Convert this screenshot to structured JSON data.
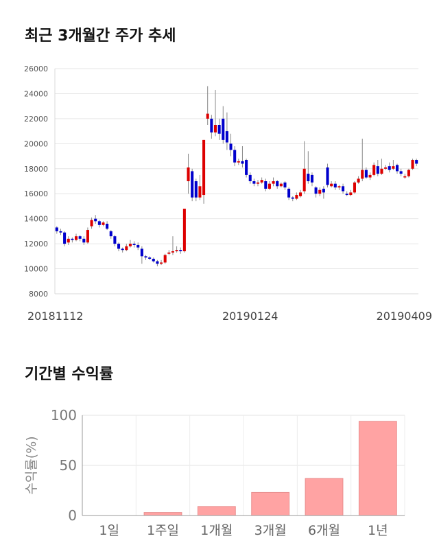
{
  "sections": {
    "price_title": "최근 3개월간 주가 추세",
    "returns_title": "기간별 수익률"
  },
  "chart_data": [
    {
      "type": "candlestick",
      "title": "최근 3개월간 주가 추세",
      "y_ticks": [
        8000,
        10000,
        12000,
        14000,
        16000,
        18000,
        20000,
        22000,
        24000,
        26000
      ],
      "ylim": [
        8000,
        26000
      ],
      "x_tick_labels": [
        "20181112",
        "20190124",
        "20190409"
      ],
      "x_tick_indices": [
        0,
        50,
        100
      ],
      "grid": true,
      "up_color": "#dd0000",
      "down_color": "#0000cc",
      "candles": [
        [
          13300,
          13000,
          12800,
          13400
        ],
        [
          13000,
          12900,
          12700,
          13200
        ],
        [
          12900,
          12000,
          11800,
          13000
        ],
        [
          12100,
          12400,
          11900,
          12600
        ],
        [
          12400,
          12300,
          12100,
          12500
        ],
        [
          12300,
          12600,
          12200,
          12800
        ],
        [
          12600,
          12400,
          12200,
          12700
        ],
        [
          12400,
          12100,
          11900,
          12600
        ],
        [
          12100,
          13100,
          12000,
          13300
        ],
        [
          13400,
          13900,
          13200,
          14100
        ],
        [
          14000,
          13800,
          13600,
          14300
        ],
        [
          13800,
          13500,
          13300,
          13900
        ],
        [
          13500,
          13700,
          13400,
          13800
        ],
        [
          13600,
          13200,
          13100,
          13800
        ],
        [
          13000,
          12600,
          12400,
          13100
        ],
        [
          12600,
          12000,
          11800,
          12700
        ],
        [
          12000,
          11600,
          11400,
          12100
        ],
        [
          11600,
          11500,
          11300,
          11700
        ],
        [
          11500,
          11800,
          11400,
          12000
        ],
        [
          11800,
          12000,
          11700,
          12300
        ],
        [
          12000,
          11900,
          11700,
          12200
        ],
        [
          11900,
          11700,
          11500,
          12100
        ],
        [
          11600,
          11000,
          10400,
          11800
        ],
        [
          11000,
          10900,
          10700,
          11100
        ],
        [
          10900,
          10800,
          10700,
          11000
        ],
        [
          10800,
          10600,
          10500,
          10900
        ],
        [
          10600,
          10400,
          10200,
          10700
        ],
        [
          10400,
          10500,
          10300,
          10700
        ],
        [
          10500,
          11100,
          10400,
          11200
        ],
        [
          11200,
          11300,
          11100,
          11500
        ],
        [
          11300,
          11400,
          11100,
          12600
        ],
        [
          11400,
          11500,
          11300,
          11800
        ],
        [
          11500,
          11400,
          11200,
          11700
        ],
        [
          11400,
          14800,
          11300,
          14800
        ],
        [
          17000,
          18100,
          16000,
          19200
        ],
        [
          17800,
          15700,
          15400,
          18000
        ],
        [
          17000,
          15700,
          15400,
          17200
        ],
        [
          15700,
          16600,
          15500,
          17500
        ],
        [
          15900,
          20300,
          15200,
          20300
        ],
        [
          22000,
          22400,
          21500,
          24600
        ],
        [
          22000,
          20900,
          20400,
          22300
        ],
        [
          20900,
          21500,
          20600,
          24300
        ],
        [
          21500,
          20800,
          20300,
          22000
        ],
        [
          22000,
          20300,
          20000,
          23000
        ],
        [
          21000,
          20100,
          19500,
          22500
        ],
        [
          20000,
          19500,
          19000,
          20800
        ],
        [
          19500,
          18500,
          18200,
          19800
        ],
        [
          18500,
          18600,
          18300,
          18800
        ],
        [
          18600,
          18400,
          18100,
          19800
        ],
        [
          18700,
          17500,
          17300,
          18800
        ],
        [
          17500,
          17000,
          16800,
          17700
        ],
        [
          17000,
          16800,
          16600,
          17200
        ],
        [
          16800,
          16900,
          16600,
          17100
        ],
        [
          16900,
          17100,
          16800,
          17300
        ],
        [
          17000,
          16400,
          16200,
          17200
        ],
        [
          16400,
          16800,
          16300,
          17000
        ],
        [
          16800,
          17000,
          16600,
          17300
        ],
        [
          17000,
          16600,
          16400,
          17100
        ],
        [
          16600,
          16800,
          16500,
          16900
        ],
        [
          16900,
          16500,
          16300,
          17000
        ],
        [
          16400,
          15700,
          15500,
          16500
        ],
        [
          15700,
          15600,
          15400,
          15800
        ],
        [
          15600,
          15900,
          15500,
          16100
        ],
        [
          15800,
          16100,
          15700,
          16300
        ],
        [
          16200,
          18000,
          16000,
          20200
        ],
        [
          17600,
          17000,
          16800,
          19400
        ],
        [
          17500,
          16900,
          16600,
          17700
        ],
        [
          16500,
          16000,
          15700,
          16600
        ],
        [
          16000,
          16300,
          15800,
          16500
        ],
        [
          16400,
          16100,
          15600,
          16600
        ],
        [
          18100,
          16700,
          16500,
          18400
        ],
        [
          16600,
          16800,
          16500,
          17000
        ],
        [
          16800,
          16500,
          16300,
          17000
        ],
        [
          16500,
          16600,
          16300,
          16700
        ],
        [
          16600,
          16200,
          16000,
          16800
        ],
        [
          16000,
          15900,
          15800,
          16200
        ],
        [
          15900,
          16100,
          15800,
          16300
        ],
        [
          16100,
          16900,
          16000,
          17000
        ],
        [
          16900,
          17200,
          16800,
          17400
        ],
        [
          17200,
          17900,
          17000,
          20400
        ],
        [
          17900,
          17300,
          17200,
          18100
        ],
        [
          17300,
          17500,
          17100,
          17700
        ],
        [
          17500,
          18300,
          17400,
          18500
        ],
        [
          18200,
          17600,
          17400,
          18700
        ],
        [
          17600,
          18000,
          17500,
          18800
        ],
        [
          18000,
          18100,
          17900,
          18300
        ],
        [
          18200,
          17900,
          17700,
          18500
        ],
        [
          18000,
          18200,
          17900,
          18700
        ],
        [
          18300,
          17800,
          17600,
          18400
        ],
        [
          17800,
          17600,
          17400,
          18000
        ],
        [
          17300,
          17400,
          17200,
          17600
        ],
        [
          17400,
          17900,
          17300,
          18000
        ],
        [
          18000,
          18700,
          17900,
          18800
        ],
        [
          18700,
          18400,
          18200,
          18800
        ]
      ]
    },
    {
      "type": "bar",
      "title": "기간별 수익률",
      "categories": [
        "1일",
        "1주일",
        "1개월",
        "3개월",
        "6개월",
        "1년"
      ],
      "values": [
        0,
        3,
        9,
        23,
        37,
        94
      ],
      "ylabel": "수익률(%)",
      "ylim": [
        0,
        100
      ],
      "y_ticks": [
        0,
        50,
        100
      ],
      "bar_color": "#ffa3a3",
      "bar_stroke": "#e88e8e",
      "grid": true
    }
  ]
}
